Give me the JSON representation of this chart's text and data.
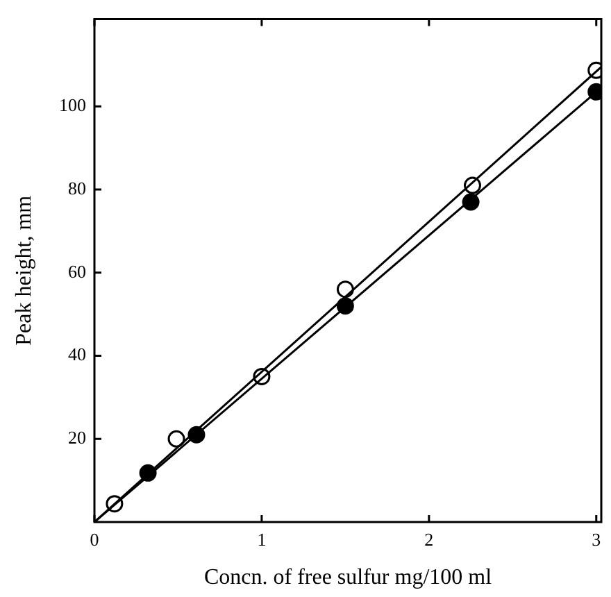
{
  "chart_data": {
    "type": "scatter",
    "xlabel": "Concn. of free sulfur mg/100 ml",
    "ylabel": "Peak height, mm",
    "xlim": [
      0,
      3.03
    ],
    "ylim": [
      0,
      121
    ],
    "xticks": [
      0,
      1,
      2,
      3
    ],
    "yticks": [
      20,
      40,
      60,
      80,
      100
    ],
    "grid": false,
    "series": [
      {
        "type": "line",
        "marker": "none",
        "color": "#000000",
        "x": [
          0,
          3.03
        ],
        "values": [
          0,
          109.5
        ]
      },
      {
        "type": "line",
        "marker": "none",
        "color": "#000000",
        "x": [
          0,
          3.03
        ],
        "values": [
          0,
          104.5
        ]
      },
      {
        "marker": "circle",
        "color": "#ffffff",
        "x": [
          0.12,
          0.49,
          1.0,
          1.5,
          2.26,
          3.0
        ],
        "values": [
          4.4,
          20,
          35,
          56,
          81,
          108.7
        ]
      },
      {
        "marker": "circle",
        "color": "#000000",
        "x": [
          0.32,
          0.61,
          1.5,
          2.25,
          3.0
        ],
        "values": [
          11.8,
          21,
          52,
          77,
          103.5
        ]
      }
    ]
  }
}
